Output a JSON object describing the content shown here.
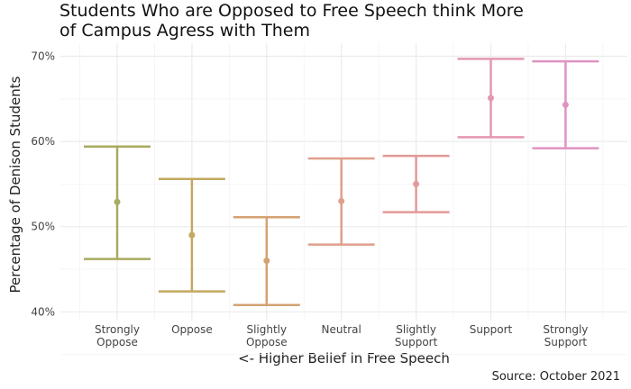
{
  "chart_data": {
    "type": "errorbar",
    "title": "Students Who are Opposed to Free Speech think More\nof Campus Agress with Them",
    "xlabel": "<- Higher Belief in Free Speech",
    "ylabel": "Percentage of Denison Students",
    "caption": "Source: October 2021",
    "categories": [
      "Strongly\nOppose",
      "Oppose",
      "Slightly\nOppose",
      "Neutral",
      "Slightly\nSupport",
      "Support",
      "Strongly\nSupport"
    ],
    "values": [
      52.9,
      49.0,
      46.0,
      53.0,
      55.0,
      65.1,
      64.3
    ],
    "lower": [
      46.2,
      42.4,
      40.8,
      47.9,
      51.7,
      60.5,
      59.2
    ],
    "upper": [
      59.4,
      55.6,
      51.1,
      58.0,
      58.3,
      69.7,
      69.4
    ],
    "colors": [
      "#a9ab5f",
      "#c3a960",
      "#d4a272",
      "#df9f8a",
      "#e39a99",
      "#e597b0",
      "#e093c2"
    ],
    "ylim": [
      40,
      70
    ],
    "yticks": [
      40,
      50,
      60,
      70
    ],
    "ytick_labels": [
      "40%",
      "50%",
      "60%",
      "70%"
    ],
    "grid": true
  }
}
